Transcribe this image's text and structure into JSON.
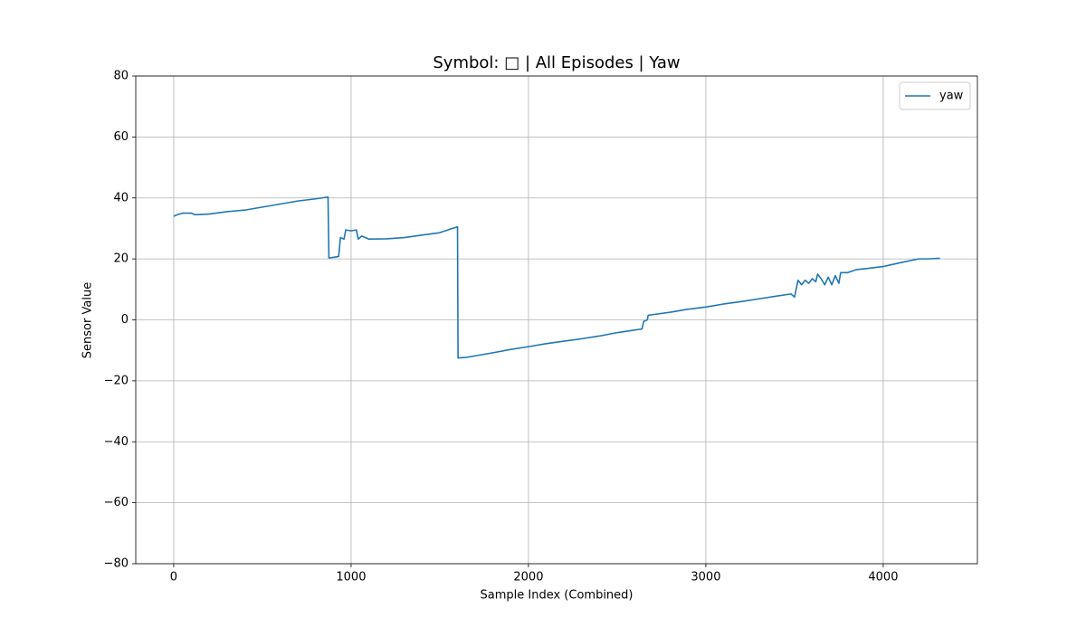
{
  "chart_data": {
    "type": "line",
    "title": "Symbol: □ | All Episodes | Yaw",
    "xlabel": "Sample Index (Combined)",
    "ylabel": "Sensor Value",
    "legend": "upper right",
    "grid": true,
    "xlim": [
      -214,
      4531
    ],
    "ylim": [
      -80,
      80
    ],
    "xticks": [
      0,
      1000,
      2000,
      3000,
      4000
    ],
    "yticks": [
      {
        "value": -80,
        "label": "−80"
      },
      {
        "value": -60,
        "label": "−60"
      },
      {
        "value": -40,
        "label": "−40"
      },
      {
        "value": -20,
        "label": "−20"
      },
      0,
      20,
      40,
      60,
      80
    ],
    "x": [
      0,
      20,
      50,
      100,
      120,
      200,
      300,
      400,
      500,
      600,
      700,
      800,
      870,
      875,
      900,
      930,
      940,
      960,
      970,
      1000,
      1030,
      1040,
      1060,
      1100,
      1200,
      1300,
      1400,
      1500,
      1560,
      1600,
      1603,
      1650,
      1700,
      1800,
      1900,
      2000,
      2100,
      2200,
      2300,
      2400,
      2500,
      2580,
      2640,
      2650,
      2670,
      2675,
      2700,
      2800,
      2900,
      3000,
      3100,
      3200,
      3300,
      3400,
      3480,
      3500,
      3520,
      3540,
      3560,
      3580,
      3600,
      3620,
      3630,
      3650,
      3670,
      3690,
      3710,
      3730,
      3750,
      3760,
      3800,
      3850,
      3900,
      4000,
      4100,
      4200,
      4250,
      4320
    ],
    "series": [
      {
        "name": "yaw",
        "color": "#1f77b4",
        "values": [
          34,
          34.5,
          35,
          35,
          34.5,
          34.7,
          35.5,
          36,
          37,
          38,
          39,
          39.7,
          40.3,
          20.3,
          20.5,
          20.8,
          27,
          26.5,
          29.5,
          29.2,
          29.5,
          26.5,
          27.5,
          26.5,
          26.6,
          27,
          27.8,
          28.6,
          29.8,
          30.5,
          -12.5,
          -12.3,
          -11.8,
          -10.8,
          -9.7,
          -8.8,
          -7.8,
          -7,
          -6.2,
          -5.3,
          -4.2,
          -3.5,
          -3,
          -0.5,
          0,
          1.5,
          1.7,
          2.5,
          3.5,
          4.2,
          5.2,
          6,
          6.9,
          7.8,
          8.5,
          7.5,
          13,
          11.5,
          13,
          12,
          13.5,
          12.5,
          15,
          13.5,
          11.5,
          14,
          11.5,
          14.5,
          12,
          15.5,
          15.5,
          16.5,
          16.8,
          17.5,
          18.8,
          20,
          20,
          20.2
        ]
      }
    ]
  }
}
